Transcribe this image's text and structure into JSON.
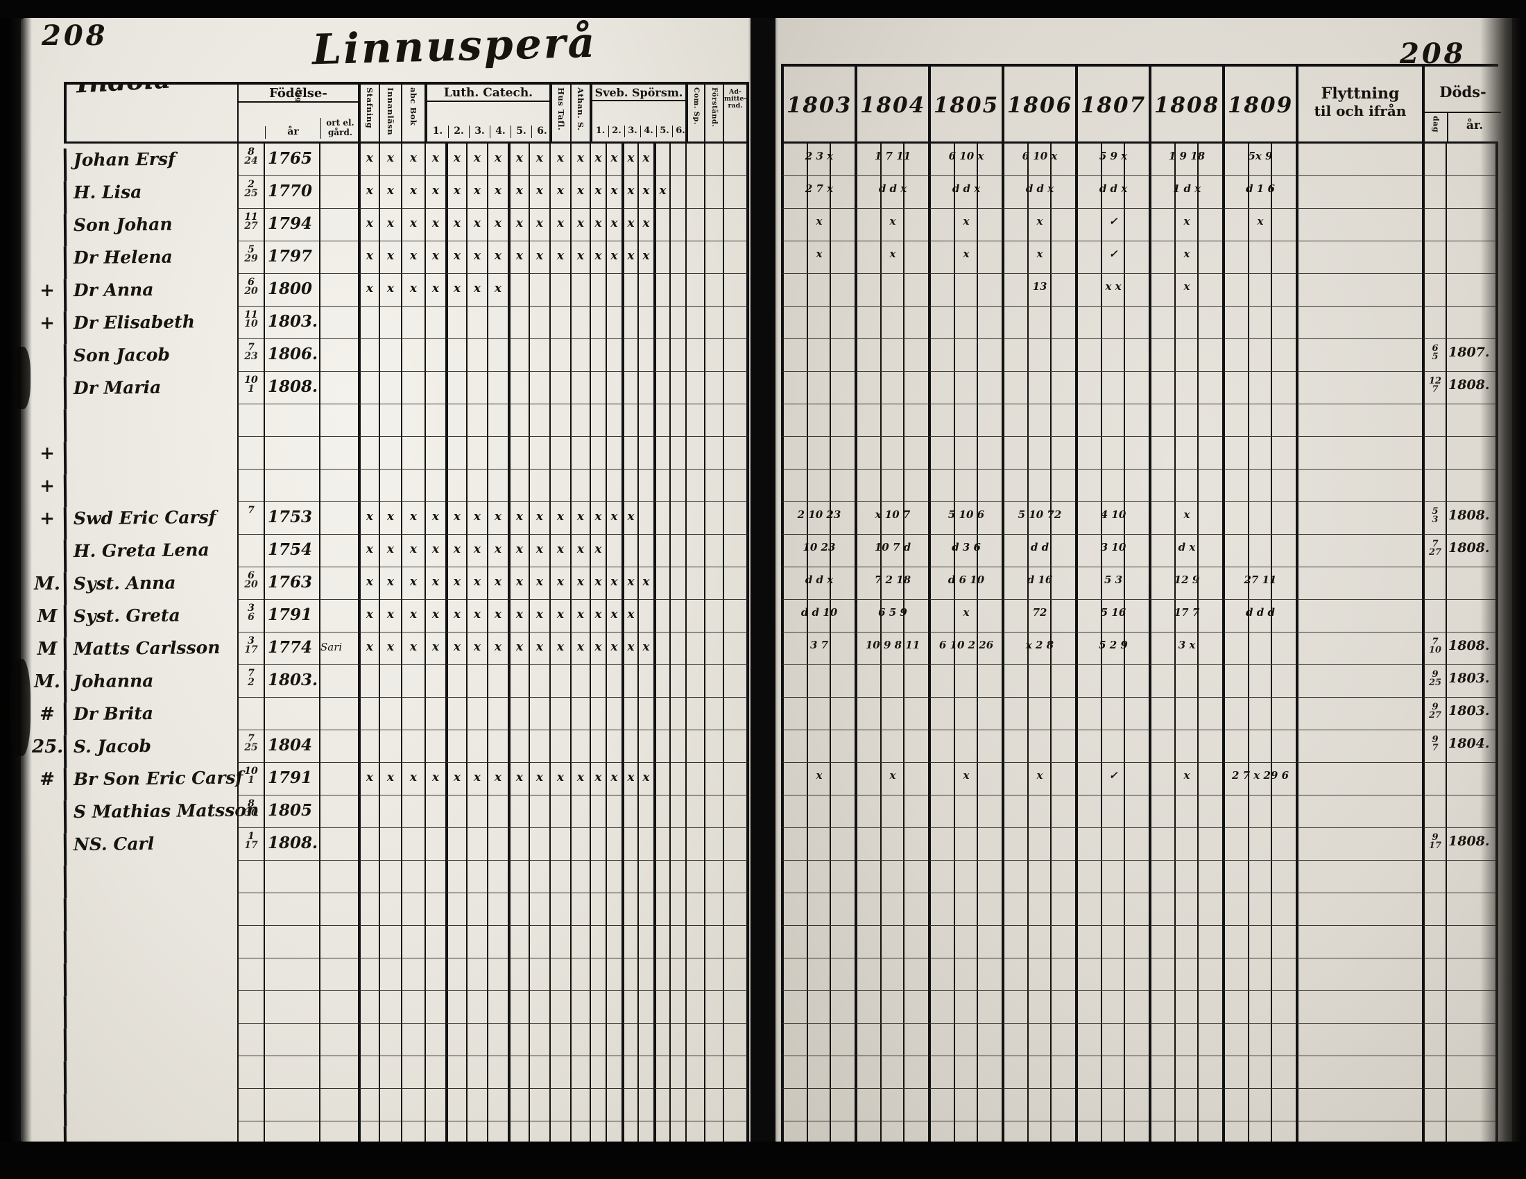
{
  "document": {
    "left_page_number": "208",
    "right_page_number": "208",
    "title_script": "Linnusperå",
    "household_script": "Indola"
  },
  "left_header": {
    "fodelse_label": "Födelse-",
    "fodelse_dag": "dag",
    "fodelse_ar": "år",
    "fodelse_ort": "ort el. gård.",
    "col_stafning": "Stafning",
    "col_innanlasn": "Innanläsn",
    "col_abcbok": "abc Bok",
    "luth_label": "Luth. Catech.",
    "luth_subs": [
      "1.",
      "2.",
      "3.",
      "4.",
      "5.",
      "6."
    ],
    "col_hustafl": "Hus Tafl.",
    "col_athan": "Athan. S.",
    "sveb_label": "Sveb. Spörsm.",
    "sveb_subs": [
      "1.",
      "2.",
      "3.",
      "4.",
      "5.",
      "6."
    ],
    "col_comsp": "Com. Sp.",
    "col_forstand": "Förständ.",
    "col_admitterad": "Ad- mitte- rad."
  },
  "right_header": {
    "years": [
      "1803",
      "1804",
      "1805",
      "1806",
      "1807",
      "1808",
      "1809"
    ],
    "flytt_line1": "Flyttning",
    "flytt_line2": "til och ifrån",
    "dods_label": "Döds-",
    "dods_dag": "dag",
    "dods_ar": "år."
  },
  "rows": [
    {
      "m": "",
      "n": "Johan Ersf",
      "d": "8/24",
      "a": "1765",
      "o": "",
      "x": 15,
      "y": [
        "2 3 x",
        "1 7 11",
        "6 10 x",
        "6 10 x",
        "5 9 x",
        "1 9 18",
        "5x 9"
      ],
      "fd": "",
      "fa": ""
    },
    {
      "m": "",
      "n": "H. Lisa",
      "d": "2/25",
      "a": "1770",
      "o": "",
      "x": 16,
      "y": [
        "2 7 x",
        "d d x",
        "d d x",
        "d d x",
        "d d x",
        "1 d x",
        "d 1 6"
      ],
      "fd": "",
      "fa": ""
    },
    {
      "m": "",
      "n": "Son Johan",
      "d": "11/27",
      "a": "1794",
      "o": "",
      "x": 15,
      "y": [
        "x",
        "x",
        "x",
        "x",
        "✓",
        "x",
        "x"
      ],
      "fd": "",
      "fa": ""
    },
    {
      "m": "",
      "n": "Dr Helena",
      "d": "5/29",
      "a": "1797",
      "o": "",
      "x": 15,
      "y": [
        "x",
        "x",
        "x",
        "x",
        "✓",
        "x",
        ""
      ],
      "fd": "",
      "fa": ""
    },
    {
      "m": "",
      "n": "Dr Anna",
      "d": "6/20",
      "a": "1800",
      "o": "",
      "x": 7,
      "y": [
        "",
        "",
        "",
        "13",
        "x x",
        "x",
        ""
      ],
      "fd": "",
      "fa": ""
    },
    {
      "m": "",
      "n": "Dr Elisabeth",
      "d": "11/10",
      "a": "1803.",
      "o": "",
      "x": 0,
      "y": [
        "",
        "",
        "",
        "",
        "",
        "",
        ""
      ],
      "fd": "",
      "fa": ""
    },
    {
      "m": "+",
      "n": "Son Jacob",
      "d": "7/23",
      "a": "1806.",
      "o": "",
      "x": 0,
      "y": [
        "",
        "",
        "",
        "",
        "",
        "",
        ""
      ],
      "fd": "6/5",
      "fa": "1807."
    },
    {
      "m": "+",
      "n": "Dr Maria",
      "d": "10/1",
      "a": "1808.",
      "o": "",
      "x": 0,
      "y": [
        "",
        "",
        "",
        "",
        "",
        "",
        ""
      ],
      "fd": "12/7",
      "fa": "1808."
    },
    {},
    {},
    {},
    {
      "m": "+",
      "n": "Swd Eric Carsf",
      "d": "7",
      "a": "1753",
      "o": "",
      "x": 14,
      "y": [
        "2 10 23",
        "x 10 7",
        "5 10 6",
        "5 10 72",
        "4 10",
        "x",
        ""
      ],
      "fd": "5/3",
      "fa": "1808."
    },
    {
      "m": "+",
      "n": "H. Greta Lena",
      "d": "",
      "a": "1754",
      "o": "",
      "x": 12,
      "y": [
        "10 23",
        "10 7 d",
        "d 3 6",
        "d d",
        "3 10",
        "d x",
        ""
      ],
      "fd": "7/27",
      "fa": "1808."
    },
    {
      "m": "+",
      "n": "Syst. Anna",
      "d": "6/20",
      "a": "1763",
      "o": "",
      "x": 15,
      "y": [
        "d d x",
        "7 2 18",
        "d 6 10",
        "d 16",
        "5 3",
        "12 9",
        "27 11"
      ],
      "fd": "",
      "fa": ""
    },
    {
      "m": "",
      "n": "Syst. Greta",
      "d": "3/6",
      "a": "1791",
      "o": "",
      "x": 14,
      "y": [
        "d d 10",
        "6 5 9",
        "x",
        "72",
        "5 16",
        "17 7",
        "d d d"
      ],
      "fd": "",
      "fa": ""
    },
    {
      "m": "M.",
      "n": "Matts Carlsson",
      "d": "3/17",
      "a": "1774",
      "o": "Sari",
      "x": 15,
      "y": [
        "3 7",
        "10 9 8 11",
        "6 10 2 26",
        "x 2 8",
        "5 2 9",
        "3 x",
        ""
      ],
      "fd": "7/10",
      "fa": "1808."
    },
    {
      "m": "M",
      "n": "Johanna",
      "d": "7/2",
      "a": "1803.",
      "o": "",
      "x": 0,
      "y": [
        "",
        "",
        "",
        "",
        "",
        "",
        ""
      ],
      "fd": "9/25",
      "fa": "1803."
    },
    {
      "m": "M",
      "n": "Dr Brita",
      "d": "",
      "a": "",
      "o": "",
      "x": 0,
      "y": [
        "",
        "",
        "",
        "",
        "",
        "",
        ""
      ],
      "fd": "9/27",
      "fa": "1803."
    },
    {
      "m": "M.",
      "n": "S. Jacob",
      "d": "7/25",
      "a": "1804",
      "o": "",
      "x": 0,
      "y": [
        "",
        "",
        "",
        "",
        "",
        "",
        ""
      ],
      "fd": "9/7",
      "fa": "1804."
    },
    {
      "m": "#",
      "n": "Br Son Eric Carsf",
      "d": "10/1",
      "a": "1791",
      "o": "",
      "x": 15,
      "y": [
        "x",
        "x",
        "x",
        "x",
        "✓",
        "x",
        "2 7 x 29 6"
      ],
      "fd": "",
      "fa": ""
    },
    {
      "m": "25.",
      "n": "S Mathias Matsson",
      "d": "8/30",
      "a": "1805",
      "o": "",
      "x": 0,
      "y": [
        "",
        "",
        "",
        "",
        "",
        "",
        ""
      ],
      "fd": "",
      "fa": ""
    },
    {
      "m": "#",
      "n": "NS. Carl",
      "d": "1/17",
      "a": "1808.",
      "o": "",
      "x": 0,
      "y": [
        "",
        "",
        "",
        "",
        "",
        "",
        ""
      ],
      "fd": "9/17",
      "fa": "1808."
    },
    {},
    {},
    {},
    {},
    {},
    {},
    {},
    {},
    {}
  ]
}
